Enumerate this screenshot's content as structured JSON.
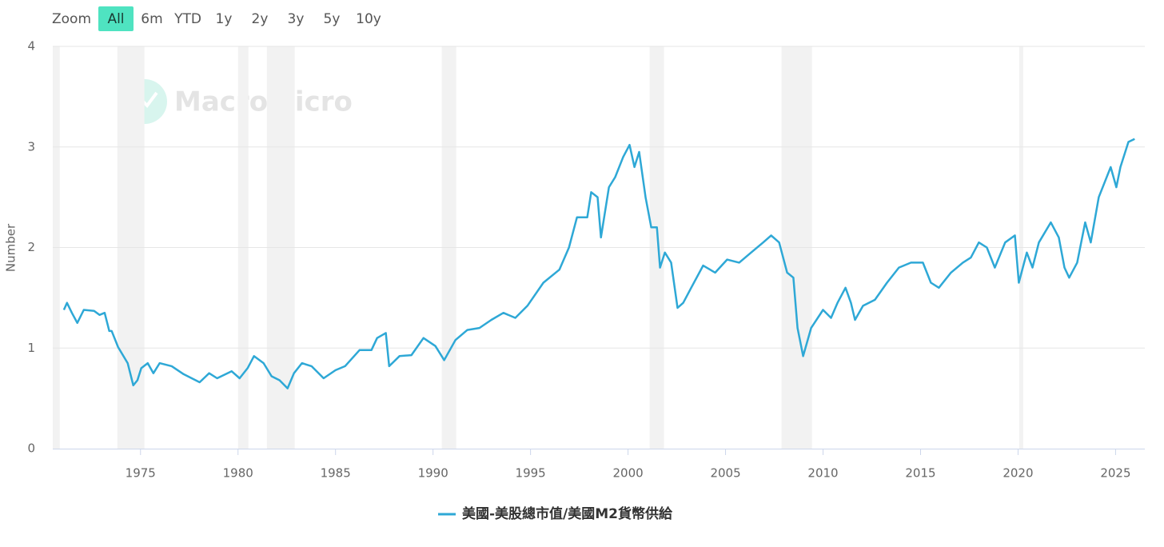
{
  "zoom": {
    "label": "Zoom",
    "buttons": [
      "All",
      "6m",
      "YTD",
      "1y",
      "2y",
      "3y",
      "5y",
      "10y"
    ],
    "selected": "All"
  },
  "watermark": "MacroMicro",
  "chart_data": {
    "type": "line",
    "ylabel": "Number",
    "xlim": [
      1970.5,
      2026.5
    ],
    "xticks": [
      1975,
      1980,
      1985,
      1990,
      1995,
      2000,
      2005,
      2010,
      2015,
      2020,
      2025
    ],
    "ylim": [
      0,
      4
    ],
    "yticks": [
      0,
      1,
      2,
      3,
      4
    ],
    "grid": true,
    "legend": "bottom",
    "bands": [
      [
        1970.5,
        1970.86
      ],
      [
        1973.81,
        1975.2
      ],
      [
        1980.0,
        1980.53
      ],
      [
        1981.48,
        1982.91
      ],
      [
        1990.45,
        1991.19
      ],
      [
        2001.11,
        2001.84
      ],
      [
        2007.87,
        2009.43
      ],
      [
        2020.06,
        2020.26
      ]
    ],
    "band_color": "#f2f2f2",
    "x": [
      1971.07,
      1971.23,
      1971.48,
      1971.76,
      1972.09,
      1972.62,
      1972.9,
      1973.16,
      1973.4,
      1973.52,
      1973.85,
      1974.34,
      1974.63,
      1974.84,
      1975.04,
      1975.37,
      1975.66,
      1975.98,
      1976.6,
      1977.21,
      1978.03,
      1978.52,
      1978.93,
      1979.67,
      1980.08,
      1980.49,
      1980.82,
      1981.31,
      1981.72,
      1982.13,
      1982.54,
      1982.87,
      1983.28,
      1983.77,
      1984.39,
      1985.0,
      1985.49,
      1986.23,
      1986.84,
      1987.13,
      1987.58,
      1987.75,
      1988.28,
      1988.89,
      1989.51,
      1990.12,
      1990.57,
      1991.15,
      1991.76,
      1992.38,
      1992.99,
      1993.61,
      1994.22,
      1994.84,
      1995.66,
      1996.48,
      1996.97,
      1997.38,
      1997.91,
      1998.11,
      1998.44,
      1998.61,
      1999.02,
      1999.34,
      1999.75,
      2000.08,
      2000.33,
      2000.57,
      2000.9,
      2001.19,
      2001.48,
      2001.64,
      2001.89,
      2002.21,
      2002.54,
      2002.83,
      2003.24,
      2003.85,
      2004.47,
      2005.08,
      2005.7,
      2006.31,
      2006.93,
      2007.34,
      2007.75,
      2008.16,
      2008.48,
      2008.69,
      2008.98,
      2009.39,
      2010.0,
      2010.41,
      2010.74,
      2011.15,
      2011.43,
      2011.64,
      2012.05,
      2012.66,
      2013.28,
      2013.89,
      2014.51,
      2015.12,
      2015.53,
      2015.94,
      2016.56,
      2017.17,
      2017.58,
      2017.99,
      2018.4,
      2018.81,
      2019.34,
      2019.84,
      2020.04,
      2020.45,
      2020.74,
      2021.07,
      2021.68,
      2022.09,
      2022.38,
      2022.62,
      2023.03,
      2023.44,
      2023.73,
      2024.14,
      2024.75,
      2025.04,
      2025.25,
      2025.66,
      2025.98
    ],
    "series": [
      {
        "name": "美國-美股總市值/美國M2貨幣供給",
        "color": "#2ea8d6",
        "values": [
          1.38,
          1.45,
          1.35,
          1.25,
          1.38,
          1.37,
          1.33,
          1.35,
          1.17,
          1.17,
          1.01,
          0.85,
          0.63,
          0.68,
          0.8,
          0.85,
          0.75,
          0.85,
          0.82,
          0.74,
          0.66,
          0.75,
          0.7,
          0.77,
          0.7,
          0.8,
          0.92,
          0.85,
          0.72,
          0.68,
          0.6,
          0.75,
          0.85,
          0.82,
          0.7,
          0.78,
          0.82,
          0.98,
          0.98,
          1.1,
          1.15,
          0.82,
          0.92,
          0.93,
          1.1,
          1.02,
          0.88,
          1.08,
          1.18,
          1.2,
          1.28,
          1.35,
          1.3,
          1.42,
          1.65,
          1.78,
          2.0,
          2.3,
          2.3,
          2.55,
          2.5,
          2.1,
          2.6,
          2.7,
          2.9,
          3.02,
          2.8,
          2.95,
          2.5,
          2.2,
          2.2,
          1.8,
          1.95,
          1.85,
          1.4,
          1.45,
          1.6,
          1.82,
          1.75,
          1.88,
          1.85,
          1.95,
          2.05,
          2.12,
          2.05,
          1.75,
          1.7,
          1.2,
          0.92,
          1.2,
          1.38,
          1.3,
          1.45,
          1.6,
          1.45,
          1.28,
          1.42,
          1.48,
          1.65,
          1.8,
          1.85,
          1.85,
          1.65,
          1.6,
          1.75,
          1.85,
          1.9,
          2.05,
          2.0,
          1.8,
          2.05,
          2.12,
          1.65,
          1.95,
          1.8,
          2.05,
          2.25,
          2.1,
          1.8,
          1.7,
          1.85,
          2.25,
          2.05,
          2.5,
          2.8,
          2.6,
          2.8,
          3.05,
          3.08
        ]
      }
    ]
  }
}
